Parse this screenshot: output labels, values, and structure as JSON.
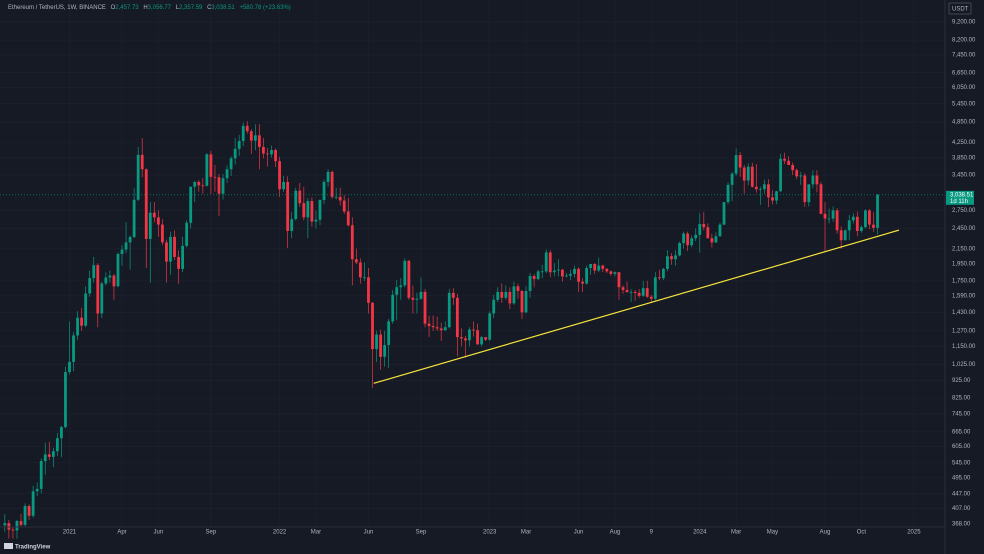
{
  "header": {
    "symbol": "Ethereum / TetherUS, 1W, BINANCE",
    "open_label": "O",
    "open": "2,457.73",
    "high_label": "H",
    "high": "3,056.77",
    "low_label": "L",
    "low": "2,357.59",
    "close_label": "C",
    "close": "3,038.51",
    "change": "+580.78 (+23.63%)"
  },
  "currency": "USDT",
  "brand": "TradingView",
  "chart_data": {
    "type": "candlestick",
    "up_color": "#089981",
    "down_color": "#f23645",
    "log_scale": true,
    "grid": true,
    "ylim": [
      361,
      10600
    ],
    "xlim": [
      -1.2,
      232.7
    ],
    "yticks": [
      {
        "value": 9200,
        "label": "9,200.00"
      },
      {
        "value": 8200,
        "label": "8,200.00"
      },
      {
        "value": 7450,
        "label": "7,450.00"
      },
      {
        "value": 6650,
        "label": "6,650.00"
      },
      {
        "value": 6050,
        "label": "6,050.00"
      },
      {
        "value": 5450,
        "label": "5,450.00"
      },
      {
        "value": 4850,
        "label": "4,850.00"
      },
      {
        "value": 4250,
        "label": "4,250.00"
      },
      {
        "value": 3850,
        "label": "3,850.00"
      },
      {
        "value": 3450,
        "label": "3,450.00"
      },
      {
        "value": 2750,
        "label": "2,750.00"
      },
      {
        "value": 2450,
        "label": "2,450.00"
      },
      {
        "value": 2150,
        "label": "2,150.00"
      },
      {
        "value": 1950,
        "label": "1,950.00"
      },
      {
        "value": 1750,
        "label": "1,750.00"
      },
      {
        "value": 1590,
        "label": "1,590.00"
      },
      {
        "value": 1430,
        "label": "1,430.00"
      },
      {
        "value": 1270,
        "label": "1,270.00"
      },
      {
        "value": 1150,
        "label": "1,150.00"
      },
      {
        "value": 1025,
        "label": "1,025.00"
      },
      {
        "value": 925,
        "label": "925.00"
      },
      {
        "value": 825,
        "label": "825.00"
      },
      {
        "value": 745,
        "label": "745.00"
      },
      {
        "value": 665,
        "label": "665.00"
      },
      {
        "value": 605,
        "label": "605.00"
      },
      {
        "value": 545,
        "label": "545.00"
      },
      {
        "value": 495,
        "label": "495.00"
      },
      {
        "value": 447,
        "label": "447.00"
      },
      {
        "value": 407,
        "label": "407.00"
      },
      {
        "value": 368,
        "label": "368.00"
      }
    ],
    "xticks": [
      {
        "value": 16,
        "label": "2021"
      },
      {
        "value": 29,
        "label": "Apr"
      },
      {
        "value": 38,
        "label": "Jun"
      },
      {
        "value": 51,
        "label": "Sep"
      },
      {
        "value": 68,
        "label": "2022"
      },
      {
        "value": 77,
        "label": "Mar"
      },
      {
        "value": 90,
        "label": "Jun"
      },
      {
        "value": 103,
        "label": "Sep"
      },
      {
        "value": 120,
        "label": "2023"
      },
      {
        "value": 129,
        "label": "Mar"
      },
      {
        "value": 142,
        "label": "Jun"
      },
      {
        "value": 151,
        "label": "Aug"
      },
      {
        "value": 160,
        "label": "9"
      },
      {
        "value": 172,
        "label": "2024"
      },
      {
        "value": 181,
        "label": "Mar"
      },
      {
        "value": 190,
        "label": "May"
      },
      {
        "value": 203,
        "label": "Aug"
      },
      {
        "value": 212,
        "label": "Oct"
      },
      {
        "value": 225,
        "label": "2025"
      }
    ],
    "last_price": {
      "value": 3038.51,
      "label": "3,038.51"
    },
    "countdown": "1d 11h",
    "trendline": {
      "x": [
        91.3,
        221.3
      ],
      "y": [
        907,
        2423
      ],
      "color": "#f5e33b"
    },
    "candles": [
      [
        365,
        392,
        350,
        370
      ],
      [
        370,
        378,
        335,
        355
      ],
      [
        355,
        362,
        335,
        353
      ],
      [
        353,
        378,
        335,
        375
      ],
      [
        375,
        393,
        360,
        366
      ],
      [
        366,
        420,
        362,
        413
      ],
      [
        413,
        417,
        378,
        388
      ],
      [
        388,
        470,
        383,
        454
      ],
      [
        454,
        480,
        440,
        461
      ],
      [
        461,
        560,
        448,
        551
      ],
      [
        551,
        620,
        505,
        575
      ],
      [
        575,
        624,
        555,
        566
      ],
      [
        566,
        600,
        530,
        587
      ],
      [
        587,
        660,
        570,
        638
      ],
      [
        638,
        690,
        565,
        685
      ],
      [
        685,
        1010,
        680,
        975
      ],
      [
        975,
        1350,
        960,
        1041
      ],
      [
        1041,
        1260,
        980,
        1233
      ],
      [
        1233,
        1440,
        1200,
        1382
      ],
      [
        1382,
        1470,
        1270,
        1313
      ],
      [
        1313,
        1690,
        1300,
        1614
      ],
      [
        1614,
        1870,
        1580,
        1781
      ],
      [
        1781,
        2040,
        1730,
        1935
      ],
      [
        1935,
        1960,
        1300,
        1420
      ],
      [
        1420,
        1740,
        1380,
        1721
      ],
      [
        1721,
        1850,
        1700,
        1788
      ],
      [
        1788,
        1870,
        1730,
        1810
      ],
      [
        1810,
        1830,
        1550,
        1690
      ],
      [
        1690,
        2100,
        1680,
        2079
      ],
      [
        2079,
        2200,
        1930,
        2139
      ],
      [
        2139,
        2550,
        2090,
        2240
      ],
      [
        2240,
        2340,
        1880,
        2318
      ],
      [
        2318,
        3170,
        2300,
        2944
      ],
      [
        2944,
        4130,
        2920,
        3928
      ],
      [
        3928,
        4370,
        3400,
        3580
      ],
      [
        3580,
        3600,
        1900,
        2290
      ],
      [
        2290,
        2900,
        1730,
        2709
      ],
      [
        2709,
        2900,
        2550,
        2630
      ],
      [
        2630,
        2750,
        2320,
        2510
      ],
      [
        2510,
        2600,
        2200,
        2240
      ],
      [
        2240,
        2280,
        1730,
        1980
      ],
      [
        1980,
        2400,
        1820,
        2320
      ],
      [
        2320,
        2420,
        2000,
        2040
      ],
      [
        2040,
        2130,
        1720,
        1890
      ],
      [
        1890,
        2320,
        1850,
        2190
      ],
      [
        2190,
        2580,
        2170,
        2540
      ],
      [
        2540,
        3200,
        2450,
        3200
      ],
      [
        3200,
        3320,
        2900,
        3300
      ],
      [
        3300,
        3340,
        3100,
        3230
      ],
      [
        3230,
        3380,
        3060,
        3220
      ],
      [
        3220,
        3970,
        3200,
        3940
      ],
      [
        3940,
        4030,
        3060,
        3410
      ],
      [
        3410,
        3680,
        3100,
        3400
      ],
      [
        3400,
        3470,
        2650,
        3060
      ],
      [
        3060,
        3470,
        2950,
        3380
      ],
      [
        3380,
        3670,
        3280,
        3580
      ],
      [
        3580,
        3890,
        3430,
        3840
      ],
      [
        3840,
        4370,
        3690,
        4080
      ],
      [
        4080,
        4460,
        3900,
        4290
      ],
      [
        4290,
        4830,
        4150,
        4730
      ],
      [
        4730,
        4870,
        4500,
        4570
      ],
      [
        4570,
        4630,
        3950,
        4300
      ],
      [
        4300,
        4780,
        4050,
        4450
      ],
      [
        4450,
        4780,
        3580,
        4130
      ],
      [
        4130,
        4370,
        3840,
        3960
      ],
      [
        3960,
        4100,
        3640,
        3940
      ],
      [
        3940,
        4170,
        3860,
        4050
      ],
      [
        4050,
        4090,
        3630,
        3770
      ],
      [
        3770,
        3880,
        3000,
        3150
      ],
      [
        3150,
        3430,
        3100,
        3300
      ],
      [
        3300,
        3420,
        2160,
        2410
      ],
      [
        2410,
        2720,
        2300,
        2600
      ],
      [
        2600,
        3180,
        2580,
        3120
      ],
      [
        3120,
        3280,
        2810,
        2880
      ],
      [
        2880,
        3200,
        2580,
        2630
      ],
      [
        2630,
        2980,
        2300,
        2920
      ],
      [
        2920,
        2990,
        2480,
        2560
      ],
      [
        2560,
        2750,
        2450,
        2590
      ],
      [
        2590,
        2950,
        2500,
        2940
      ],
      [
        2940,
        3350,
        2860,
        3300
      ],
      [
        3300,
        3580,
        3200,
        3520
      ],
      [
        3520,
        3550,
        2960,
        3000
      ],
      [
        3000,
        3180,
        2950,
        3000
      ],
      [
        3000,
        3180,
        2840,
        2930
      ],
      [
        2930,
        3030,
        2690,
        2730
      ],
      [
        2730,
        2980,
        2480,
        2500
      ],
      [
        2500,
        2630,
        1700,
        2010
      ],
      [
        2010,
        2150,
        1950,
        1970
      ],
      [
        1970,
        2020,
        1720,
        1790
      ],
      [
        1790,
        1970,
        1750,
        1790
      ],
      [
        1790,
        1900,
        1420,
        1520
      ],
      [
        1520,
        1530,
        880,
        1130
      ],
      [
        1130,
        1270,
        1040,
        1240
      ],
      [
        1240,
        1280,
        990,
        1075
      ],
      [
        1075,
        1270,
        1010,
        1160
      ],
      [
        1160,
        1370,
        1000,
        1350
      ],
      [
        1350,
        1650,
        1330,
        1600
      ],
      [
        1600,
        1760,
        1360,
        1680
      ],
      [
        1680,
        1780,
        1550,
        1700
      ],
      [
        1700,
        2020,
        1680,
        1990
      ],
      [
        1990,
        2000,
        1550,
        1570
      ],
      [
        1570,
        1700,
        1420,
        1550
      ],
      [
        1550,
        1620,
        1420,
        1560
      ],
      [
        1560,
        1790,
        1550,
        1630
      ],
      [
        1630,
        1660,
        1300,
        1330
      ],
      [
        1330,
        1400,
        1220,
        1310
      ],
      [
        1310,
        1400,
        1270,
        1300
      ],
      [
        1300,
        1390,
        1270,
        1290
      ],
      [
        1290,
        1340,
        1190,
        1275
      ],
      [
        1275,
        1350,
        1270,
        1300
      ],
      [
        1300,
        1660,
        1290,
        1620
      ],
      [
        1620,
        1670,
        1500,
        1570
      ],
      [
        1570,
        1610,
        1080,
        1220
      ],
      [
        1220,
        1290,
        1150,
        1210
      ],
      [
        1210,
        1230,
        1070,
        1195
      ],
      [
        1195,
        1300,
        1150,
        1280
      ],
      [
        1280,
        1350,
        1225,
        1275
      ],
      [
        1275,
        1330,
        1160,
        1165
      ],
      [
        1165,
        1230,
        1150,
        1220
      ],
      [
        1220,
        1220,
        1190,
        1200
      ],
      [
        1200,
        1440,
        1190,
        1420
      ],
      [
        1420,
        1600,
        1380,
        1550
      ],
      [
        1550,
        1680,
        1530,
        1630
      ],
      [
        1630,
        1720,
        1520,
        1570
      ],
      [
        1570,
        1700,
        1550,
        1630
      ],
      [
        1630,
        1680,
        1460,
        1515
      ],
      [
        1515,
        1740,
        1500,
        1690
      ],
      [
        1690,
        1720,
        1560,
        1640
      ],
      [
        1640,
        1650,
        1370,
        1430
      ],
      [
        1430,
        1690,
        1420,
        1640
      ],
      [
        1640,
        1840,
        1570,
        1805
      ],
      [
        1805,
        1830,
        1680,
        1770
      ],
      [
        1770,
        1880,
        1760,
        1860
      ],
      [
        1860,
        1940,
        1780,
        1860
      ],
      [
        1860,
        2140,
        1840,
        2100
      ],
      [
        2100,
        2130,
        1790,
        1850
      ],
      [
        1850,
        1960,
        1800,
        1870
      ],
      [
        1870,
        2010,
        1800,
        1880
      ],
      [
        1880,
        1890,
        1740,
        1800
      ],
      [
        1800,
        1840,
        1790,
        1810
      ],
      [
        1810,
        1880,
        1760,
        1830
      ],
      [
        1830,
        1930,
        1790,
        1890
      ],
      [
        1890,
        1910,
        1630,
        1740
      ],
      [
        1740,
        1780,
        1630,
        1720
      ],
      [
        1720,
        1930,
        1710,
        1900
      ],
      [
        1900,
        1950,
        1820,
        1950
      ],
      [
        1950,
        1960,
        1830,
        1870
      ],
      [
        1870,
        2030,
        1850,
        1930
      ],
      [
        1930,
        1940,
        1850,
        1890
      ],
      [
        1890,
        1900,
        1840,
        1860
      ],
      [
        1860,
        1870,
        1810,
        1830
      ],
      [
        1830,
        1860,
        1800,
        1850
      ],
      [
        1850,
        1850,
        1550,
        1680
      ],
      [
        1680,
        1700,
        1610,
        1650
      ],
      [
        1650,
        1740,
        1620,
        1630
      ],
      [
        1630,
        1660,
        1530,
        1630
      ],
      [
        1630,
        1650,
        1540,
        1620
      ],
      [
        1620,
        1660,
        1570,
        1590
      ],
      [
        1590,
        1750,
        1580,
        1670
      ],
      [
        1670,
        1750,
        1570,
        1580
      ],
      [
        1580,
        1600,
        1520,
        1560
      ],
      [
        1560,
        1850,
        1540,
        1790
      ],
      [
        1790,
        1880,
        1760,
        1780
      ],
      [
        1780,
        1900,
        1760,
        1890
      ],
      [
        1890,
        2130,
        1860,
        2050
      ],
      [
        2050,
        2090,
        1940,
        2010
      ],
      [
        2010,
        2130,
        1930,
        2060
      ],
      [
        2060,
        2250,
        2050,
        2230
      ],
      [
        2230,
        2400,
        2150,
        2370
      ],
      [
        2370,
        2400,
        2120,
        2200
      ],
      [
        2200,
        2340,
        2170,
        2300
      ],
      [
        2300,
        2450,
        2260,
        2350
      ],
      [
        2350,
        2700,
        2100,
        2520
      ],
      [
        2520,
        2720,
        2420,
        2470
      ],
      [
        2470,
        2530,
        2300,
        2300
      ],
      [
        2300,
        2370,
        2170,
        2240
      ],
      [
        2240,
        2390,
        2230,
        2330
      ],
      [
        2330,
        2540,
        2320,
        2510
      ],
      [
        2510,
        2900,
        2500,
        2900
      ],
      [
        2900,
        3290,
        2860,
        3240
      ],
      [
        3240,
        3520,
        2920,
        3480
      ],
      [
        3480,
        4090,
        3430,
        3920
      ],
      [
        3920,
        4000,
        3410,
        3620
      ],
      [
        3620,
        3680,
        3060,
        3330
      ],
      [
        3330,
        3720,
        3230,
        3640
      ],
      [
        3640,
        3730,
        3180,
        3200
      ],
      [
        3200,
        3700,
        3080,
        3150
      ],
      [
        3150,
        3200,
        2850,
        3150
      ],
      [
        3150,
        3350,
        3060,
        3250
      ],
      [
        3250,
        3360,
        2810,
        2990
      ],
      [
        2990,
        3130,
        2860,
        2930
      ],
      [
        2930,
        3120,
        2860,
        3110
      ],
      [
        3110,
        3950,
        3090,
        3830
      ],
      [
        3830,
        3980,
        3700,
        3780
      ],
      [
        3780,
        3890,
        3680,
        3680
      ],
      [
        3680,
        3740,
        3450,
        3560
      ],
      [
        3560,
        3600,
        3360,
        3420
      ],
      [
        3420,
        3520,
        3240,
        3440
      ],
      [
        3440,
        3490,
        2810,
        2900
      ],
      [
        2900,
        3250,
        2820,
        3250
      ],
      [
        3250,
        3560,
        3170,
        3440
      ],
      [
        3440,
        3560,
        3090,
        3250
      ],
      [
        3250,
        3300,
        2680,
        2690
      ],
      [
        2690,
        2900,
        2110,
        2610
      ],
      [
        2610,
        2780,
        2530,
        2610
      ],
      [
        2610,
        2820,
        2560,
        2750
      ],
      [
        2750,
        2790,
        2370,
        2420
      ],
      [
        2420,
        2480,
        2150,
        2270
      ],
      [
        2270,
        2430,
        2270,
        2420
      ],
      [
        2420,
        2670,
        2270,
        2580
      ],
      [
        2580,
        2700,
        2530,
        2640
      ],
      [
        2640,
        2730,
        2330,
        2410
      ],
      [
        2410,
        2500,
        2380,
        2470
      ],
      [
        2470,
        2770,
        2450,
        2750
      ],
      [
        2750,
        2770,
        2440,
        2510
      ],
      [
        2510,
        2720,
        2400,
        2460
      ],
      [
        2457.73,
        3056.77,
        2357.59,
        3038.51
      ]
    ]
  }
}
